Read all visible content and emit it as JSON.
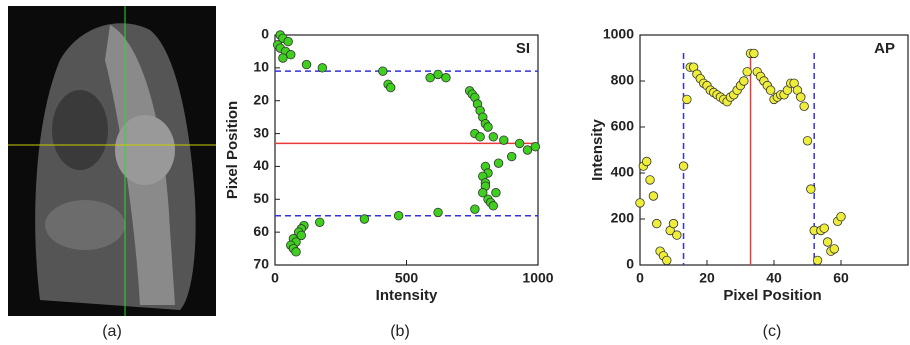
{
  "panel_labels": [
    "(a)",
    "(b)",
    "(c)"
  ],
  "chart_data": [
    {
      "type": "scatter",
      "annotation": "SI",
      "xlabel": "Intensity",
      "ylabel": "Pixel Position",
      "x": [
        20,
        30,
        50,
        10,
        20,
        40,
        60,
        30,
        120,
        180,
        410,
        430,
        440,
        590,
        620,
        650,
        740,
        750,
        760,
        770,
        780,
        790,
        800,
        810,
        760,
        780,
        830,
        870,
        930,
        960,
        990,
        900,
        850,
        800,
        810,
        790,
        800,
        800,
        790,
        810,
        820,
        830,
        760,
        840,
        620,
        470,
        340,
        170,
        110,
        100,
        90,
        100,
        70,
        80,
        60,
        70,
        80
      ],
      "series": [
        {
          "color": "#3fcf1f",
          "values": [
            0,
            1,
            2,
            3,
            4,
            5,
            6,
            7,
            9,
            10,
            11,
            15,
            16,
            13,
            12,
            13,
            17,
            18,
            19,
            21,
            23,
            25,
            27,
            28,
            30,
            31,
            31,
            32,
            33,
            35,
            34,
            37,
            39,
            40,
            42,
            43,
            45,
            46,
            48,
            50,
            51,
            52,
            53,
            48,
            54,
            55,
            56,
            57,
            58,
            59,
            60,
            61,
            62,
            63,
            64,
            65,
            66
          ]
        }
      ],
      "xlim": [
        0,
        1000
      ],
      "ylim": [
        70,
        0
      ],
      "xticks": [
        0,
        500,
        1000
      ],
      "yticks": [
        0,
        10,
        20,
        30,
        40,
        50,
        60,
        70
      ],
      "ref_lines": [
        {
          "orientation": "h",
          "value": 11,
          "color": "#3333dd",
          "dashed": true
        },
        {
          "orientation": "h",
          "value": 55,
          "color": "#3333dd",
          "dashed": true
        },
        {
          "orientation": "h",
          "value": 33,
          "color": "#e8393a",
          "dashed": false
        }
      ]
    },
    {
      "type": "scatter",
      "annotation": "AP",
      "xlabel": "Pixel Position",
      "ylabel": "Intensity",
      "x": [
        0,
        1,
        2,
        3,
        4,
        5,
        6,
        7,
        8,
        9,
        10,
        11,
        13,
        14,
        15,
        16,
        17,
        18,
        19,
        20,
        21,
        22,
        23,
        24,
        25,
        26,
        27,
        28,
        29,
        30,
        31,
        32,
        33,
        34,
        35,
        36,
        37,
        38,
        39,
        40,
        41,
        42,
        43,
        44,
        45,
        46,
        47,
        48,
        49,
        50,
        51,
        52,
        53,
        54,
        55,
        56,
        57,
        58,
        59,
        60
      ],
      "series": [
        {
          "color": "#eeee3a",
          "values": [
            270,
            430,
            450,
            370,
            300,
            180,
            60,
            40,
            20,
            150,
            180,
            130,
            430,
            720,
            860,
            860,
            830,
            810,
            790,
            780,
            760,
            750,
            740,
            730,
            720,
            710,
            730,
            740,
            760,
            780,
            800,
            840,
            920,
            920,
            840,
            820,
            800,
            780,
            760,
            720,
            730,
            740,
            740,
            760,
            790,
            790,
            760,
            730,
            690,
            540,
            330,
            150,
            20,
            150,
            160,
            100,
            60,
            70,
            190,
            210
          ]
        }
      ],
      "xlim": [
        0,
        80
      ],
      "ylim": [
        0,
        1000
      ],
      "xticks": [
        0,
        20,
        40,
        60
      ],
      "yticks": [
        0,
        200,
        400,
        600,
        800,
        1000
      ],
      "ref_lines": [
        {
          "orientation": "v",
          "value": 13,
          "color": "#3333dd",
          "dashed": true
        },
        {
          "orientation": "v",
          "value": 52,
          "color": "#3333dd",
          "dashed": true
        },
        {
          "orientation": "v",
          "value": 33,
          "color": "#e8393a",
          "dashed": false
        }
      ]
    }
  ]
}
